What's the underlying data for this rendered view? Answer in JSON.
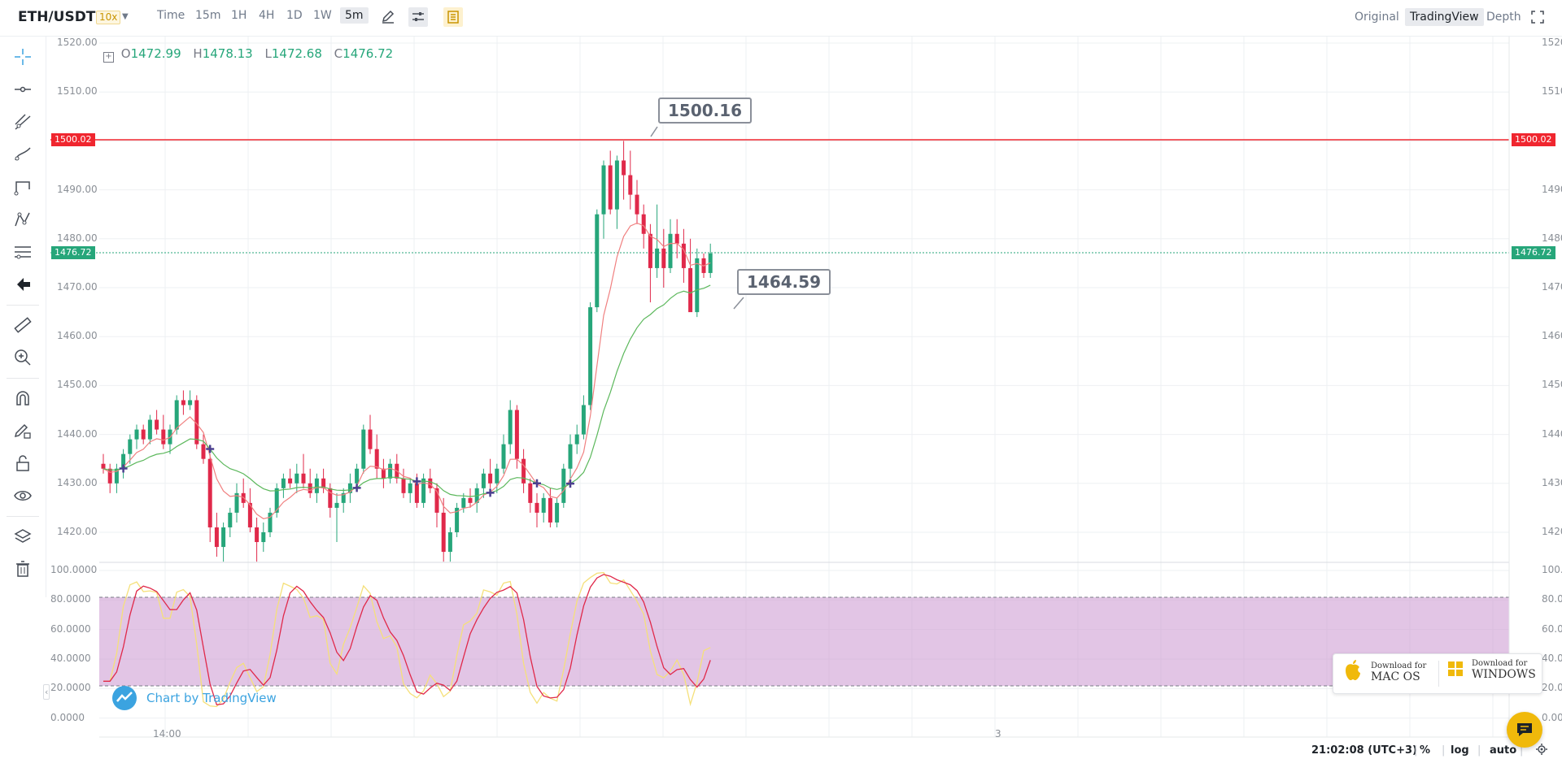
{
  "header": {
    "pair": "ETH/USDT",
    "leverage": "10x",
    "timeframes": [
      "Time",
      "15m",
      "1H",
      "4H",
      "1D",
      "1W",
      "5m"
    ],
    "active_timeframe": "5m",
    "views": [
      "Original",
      "TradingView",
      "Depth"
    ],
    "active_view": "TradingView"
  },
  "ohlc": {
    "o_label": "O",
    "o": "1472.99",
    "h_label": "H",
    "h": "1478.13",
    "l_label": "L",
    "l": "1472.68",
    "c_label": "C",
    "c": "1476.72"
  },
  "price_axis": [
    "1520.00",
    "1510.00",
    "1500.00",
    "1490.00",
    "1480.00",
    "1470.00",
    "1460.00",
    "1450.00",
    "1440.00",
    "1430.00",
    "1420.00"
  ],
  "indicator_axis": [
    "100.0000",
    "80.0000",
    "60.0000",
    "40.0000",
    "20.0000",
    "0.0000"
  ],
  "time_axis": [
    "14:00",
    "3"
  ],
  "badges": {
    "alert_price": "1500.02",
    "last_price": "1476.72"
  },
  "callouts": {
    "high": "1500.16",
    "low": "1464.59"
  },
  "watermark": "Chart by TradingView",
  "download": {
    "mac_line1": "Download for",
    "mac_line2": "MAC OS",
    "win_line1": "Download for",
    "win_line2": "WINDOWS"
  },
  "bottom": {
    "clock": "21:02:08 (UTC+3)",
    "percent": "%",
    "log": "log",
    "auto": "auto"
  },
  "colors": {
    "up": "#26a67a",
    "down": "#e0294a",
    "alert_line": "#f0262f",
    "last_line": "#26a67a",
    "band": "#ce9fd3",
    "fast_ma": "#f08080",
    "slow_ma": "#5cb85c",
    "stoch_k": "#e0294a",
    "stoch_d": "#f5e07a"
  },
  "chart_data": {
    "type": "candlestick",
    "y_range": [
      1420,
      1520
    ],
    "candles": [
      [
        1434,
        1436,
        1432,
        1433
      ],
      [
        1433,
        1434,
        1428,
        1430
      ],
      [
        1430,
        1434,
        1428,
        1433
      ],
      [
        1433,
        1437,
        1431,
        1436
      ],
      [
        1436,
        1440,
        1434,
        1439
      ],
      [
        1439,
        1442,
        1437,
        1441
      ],
      [
        1441,
        1442,
        1438,
        1439
      ],
      [
        1439,
        1444,
        1438,
        1443
      ],
      [
        1443,
        1445,
        1440,
        1441
      ],
      [
        1441,
        1444,
        1437,
        1438
      ],
      [
        1438,
        1442,
        1436,
        1441
      ],
      [
        1441,
        1448,
        1440,
        1447
      ],
      [
        1447,
        1449,
        1444,
        1446
      ],
      [
        1446,
        1449,
        1445,
        1447
      ],
      [
        1447,
        1448,
        1437,
        1438
      ],
      [
        1438,
        1440,
        1434,
        1435
      ],
      [
        1435,
        1436,
        1418,
        1421
      ],
      [
        1421,
        1424,
        1415,
        1417
      ],
      [
        1417,
        1422,
        1414,
        1421
      ],
      [
        1421,
        1425,
        1419,
        1424
      ],
      [
        1424,
        1430,
        1422,
        1428
      ],
      [
        1428,
        1431,
        1425,
        1426
      ],
      [
        1426,
        1429,
        1420,
        1421
      ],
      [
        1421,
        1423,
        1414,
        1418
      ],
      [
        1418,
        1422,
        1416,
        1420
      ],
      [
        1420,
        1425,
        1419,
        1424
      ],
      [
        1424,
        1430,
        1423,
        1429
      ],
      [
        1429,
        1432,
        1427,
        1431
      ],
      [
        1431,
        1433,
        1429,
        1430
      ],
      [
        1430,
        1434,
        1428,
        1432
      ],
      [
        1432,
        1436,
        1429,
        1430
      ],
      [
        1430,
        1433,
        1427,
        1428
      ],
      [
        1428,
        1432,
        1426,
        1431
      ],
      [
        1431,
        1433,
        1428,
        1429
      ],
      [
        1429,
        1430,
        1423,
        1425
      ],
      [
        1425,
        1428,
        1418,
        1426
      ],
      [
        1426,
        1429,
        1424,
        1428
      ],
      [
        1428,
        1432,
        1426,
        1430
      ],
      [
        1430,
        1434,
        1429,
        1433
      ],
      [
        1433,
        1442,
        1432,
        1441
      ],
      [
        1441,
        1444,
        1436,
        1437
      ],
      [
        1437,
        1440,
        1431,
        1433
      ],
      [
        1433,
        1435,
        1429,
        1431
      ],
      [
        1431,
        1435,
        1430,
        1434
      ],
      [
        1434,
        1436,
        1430,
        1431
      ],
      [
        1431,
        1433,
        1427,
        1428
      ],
      [
        1428,
        1431,
        1426,
        1430
      ],
      [
        1430,
        1432,
        1425,
        1426
      ],
      [
        1426,
        1432,
        1425,
        1431
      ],
      [
        1431,
        1433,
        1428,
        1429
      ],
      [
        1429,
        1430,
        1421,
        1424
      ],
      [
        1424,
        1427,
        1414,
        1416
      ],
      [
        1416,
        1421,
        1414,
        1420
      ],
      [
        1420,
        1426,
        1419,
        1425
      ],
      [
        1425,
        1428,
        1424,
        1427
      ],
      [
        1427,
        1429,
        1425,
        1426
      ],
      [
        1426,
        1430,
        1424,
        1429
      ],
      [
        1429,
        1433,
        1427,
        1432
      ],
      [
        1432,
        1435,
        1429,
        1430
      ],
      [
        1430,
        1434,
        1428,
        1433
      ],
      [
        1433,
        1440,
        1432,
        1438
      ],
      [
        1438,
        1447,
        1436,
        1445
      ],
      [
        1445,
        1446,
        1433,
        1435
      ],
      [
        1435,
        1437,
        1428,
        1430
      ],
      [
        1430,
        1431,
        1424,
        1426
      ],
      [
        1426,
        1428,
        1421,
        1424
      ],
      [
        1424,
        1428,
        1422,
        1427
      ],
      [
        1427,
        1429,
        1421,
        1422
      ],
      [
        1422,
        1427,
        1421,
        1426
      ],
      [
        1426,
        1434,
        1425,
        1433
      ],
      [
        1433,
        1440,
        1430,
        1438
      ],
      [
        1438,
        1442,
        1436,
        1440
      ],
      [
        1440,
        1448,
        1439,
        1446
      ],
      [
        1446,
        1467,
        1445,
        1466
      ],
      [
        1466,
        1486,
        1465,
        1485
      ],
      [
        1485,
        1496,
        1480,
        1495
      ],
      [
        1495,
        1498,
        1485,
        1486
      ],
      [
        1486,
        1497,
        1482,
        1496
      ],
      [
        1496,
        1500,
        1488,
        1493
      ],
      [
        1493,
        1498,
        1486,
        1489
      ],
      [
        1489,
        1492,
        1483,
        1485
      ],
      [
        1485,
        1487,
        1478,
        1481
      ],
      [
        1481,
        1483,
        1467,
        1474
      ],
      [
        1474,
        1487,
        1472,
        1478
      ],
      [
        1478,
        1482,
        1470,
        1474
      ],
      [
        1474,
        1484,
        1473,
        1481
      ],
      [
        1481,
        1484,
        1476,
        1479
      ],
      [
        1479,
        1482,
        1471,
        1474
      ],
      [
        1474,
        1480,
        1466,
        1465
      ],
      [
        1465,
        1478,
        1464,
        1476
      ],
      [
        1476,
        1477,
        1472,
        1473
      ],
      [
        1473,
        1479,
        1472,
        1477
      ]
    ]
  }
}
